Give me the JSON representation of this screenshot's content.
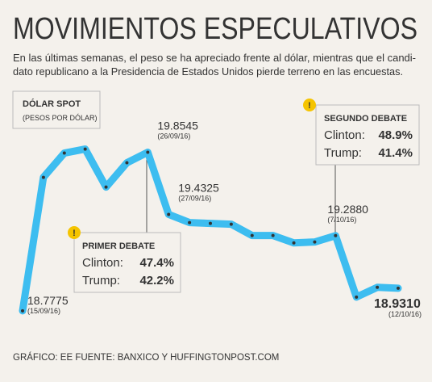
{
  "chart_data": {
    "type": "line",
    "title": "MOVIMIENTOS ESPECULATIVOS",
    "subtitle": [
      "En las últimas semanas, el peso se ha apreciado frente al dólar, mientras que el candi-",
      "dato republicano a la Presidencia de Estados Unidos pierde terreno en las encuestas."
    ],
    "y_label": "DÓLAR SPOT",
    "y_unit": "(PESOS POR DÓLAR)",
    "categories": [
      "(15/09/16)",
      null,
      null,
      null,
      null,
      null,
      "(26/09/16)",
      "(27/09/16)",
      null,
      null,
      null,
      null,
      null,
      null,
      null,
      "(7/10/16)",
      null,
      null,
      "(12/10/16)"
    ],
    "series": [
      {
        "name": "Dólar spot",
        "color": "#3dbdf0",
        "values": [
          18.7775,
          19.684,
          19.849,
          19.876,
          19.618,
          19.783,
          19.8545,
          19.4325,
          19.377,
          19.371,
          19.366,
          19.289,
          19.289,
          19.239,
          19.245,
          19.288,
          18.871,
          18.937,
          18.931
        ],
        "value_labels": [
          "18.7775",
          null,
          null,
          null,
          null,
          null,
          "19.8545",
          "19.4325",
          null,
          null,
          null,
          null,
          null,
          null,
          null,
          "19.2880",
          null,
          null,
          "18.9310"
        ]
      }
    ],
    "ylim": [
      18.7,
      20.0
    ],
    "annotations": [
      {
        "title": "PRIMER DEBATE",
        "rows": [
          [
            "Clinton:",
            "47.4%"
          ],
          [
            "Trump:",
            "42.2%"
          ]
        ]
      },
      {
        "title": "SEGUNDO DEBATE",
        "rows": [
          [
            "Clinton:",
            "48.9%"
          ],
          [
            "Trump:",
            "41.4%"
          ]
        ]
      }
    ],
    "source": "GRÁFICO: EE  FUENTE: BANXICO Y HUFFINGTONPOST.COM"
  }
}
